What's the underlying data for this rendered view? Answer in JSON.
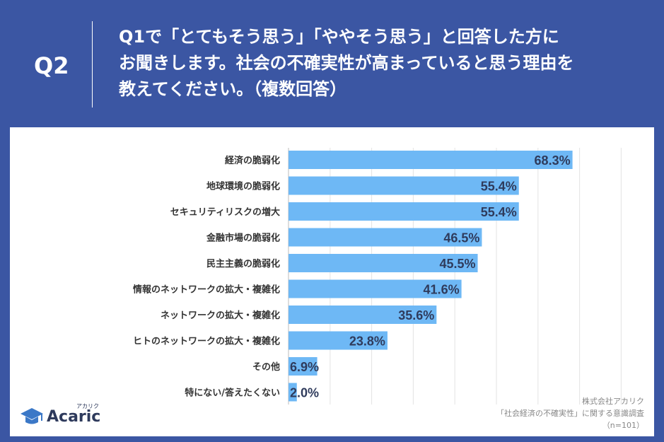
{
  "header": {
    "q_label": "Q2",
    "question_lines": [
      "Q1で「とてもそう思う」「ややそう思う」と回答した方に",
      "お聞きします。社会の不確実性が高まっていると思う理由を",
      "教えてください。（複数回答）"
    ]
  },
  "logo": {
    "name": "Acaric",
    "kana": "アカリク",
    "icon": "graduation-cap-icon"
  },
  "source": {
    "company": "株式会社アカリク",
    "survey": "「社会経済の不確実性」に関する意識調査",
    "sample": "（n=101）"
  },
  "colors": {
    "background": "#3b56a3",
    "bar": "#6eb8f5",
    "grid": "#e3e3e3",
    "label": "#333333",
    "value": "#2f3b5c"
  },
  "chart_data": {
    "type": "bar",
    "orientation": "horizontal",
    "categories": [
      "経済の脆弱化",
      "地球環境の脆弱化",
      "セキュリティリスクの増大",
      "金融市場の脆弱化",
      "民主主義の脆弱化",
      "情報のネットワークの拡大・複雑化",
      "ネットワークの拡大・複雑化",
      "ヒトのネットワークの拡大・複雑化",
      "その他",
      "特にない/答えたくない"
    ],
    "values": [
      68.3,
      55.4,
      55.4,
      46.5,
      45.5,
      41.6,
      35.6,
      23.8,
      6.9,
      2.0
    ],
    "value_labels": [
      "68.3%",
      "55.4%",
      "55.4%",
      "46.5%",
      "45.5%",
      "41.6%",
      "35.6%",
      "23.8%",
      "6.9%",
      "2.0%"
    ],
    "xlim": [
      0,
      80
    ],
    "grid": true,
    "title": "",
    "xlabel": "",
    "ylabel": ""
  }
}
